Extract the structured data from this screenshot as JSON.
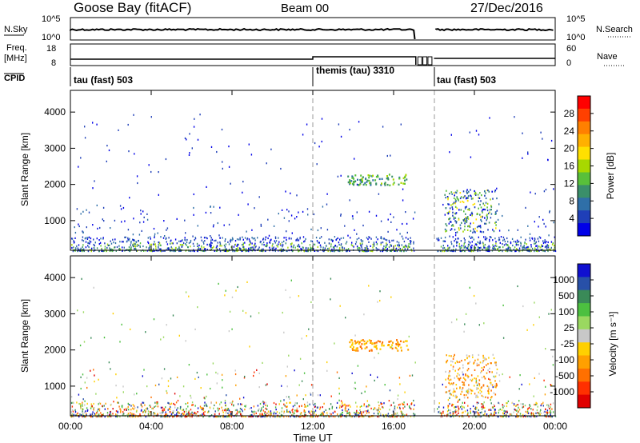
{
  "header": {
    "site": "Goose Bay (fitACF)",
    "beam": "Beam 00",
    "date": "27/Dec/2016"
  },
  "status_panels": {
    "nsky": {
      "left_label": "N.Sky",
      "left_ticks": [
        "10^5",
        "10^0"
      ],
      "right_label": "N.Search",
      "right_ticks": [
        "10^5",
        "10^0"
      ]
    },
    "freq": {
      "left_label_line1": "Freq.",
      "left_label_line2": "[MHz]",
      "left_ticks": [
        "18",
        "8"
      ],
      "right_label": "Nave",
      "right_ticks": [
        "60",
        "0"
      ]
    },
    "cpid": {
      "label": "CPID",
      "segments": [
        {
          "name": "tau (fast) 503",
          "start_h": 0,
          "end_h": 12
        },
        {
          "name": "themis (tau) 3310",
          "start_h": 12,
          "end_h": 18
        },
        {
          "name": "tau (fast) 503",
          "start_h": 18,
          "end_h": 24
        }
      ]
    }
  },
  "chart_data": [
    {
      "type": "heatmap",
      "name": "power",
      "ylabel": "Slant Range [km]",
      "xlabel": "Time UT",
      "x_range_h": [
        0,
        24
      ],
      "ylim": [
        180,
        4600
      ],
      "yticks": [
        "1000",
        "2000",
        "3000",
        "4000"
      ],
      "xticks": [
        "00:00",
        "04:00",
        "08:00",
        "12:00",
        "16:00",
        "20:00",
        "00:00"
      ],
      "colorbar": {
        "label": "Power [dB]",
        "ticks": [
          "4",
          "8",
          "12",
          "16",
          "20",
          "24",
          "28"
        ],
        "colors": [
          "#0000e8",
          "#1f3fb8",
          "#2f6fa8",
          "#3a8f6a",
          "#58c03a",
          "#a8d800",
          "#ffe000",
          "#ffb000",
          "#ff8000",
          "#ff4000",
          "#ff0000"
        ]
      },
      "features": [
        {
          "description": "ground scatter band",
          "range_km": [
            180,
            500
          ],
          "time_h": [
            0,
            24
          ]
        },
        {
          "description": "echo patch",
          "range_km": [
            2000,
            2300
          ],
          "time_h": [
            13.7,
            16.7
          ]
        },
        {
          "description": "echo patch",
          "range_km": [
            700,
            1900
          ],
          "time_h": [
            18.5,
            21
          ]
        }
      ]
    },
    {
      "type": "heatmap",
      "name": "velocity",
      "ylabel": "Slant Range [km]",
      "xlabel": "Time UT",
      "x_range_h": [
        0,
        24
      ],
      "ylim": [
        180,
        4600
      ],
      "yticks": [
        "1000",
        "2000",
        "3000",
        "4000"
      ],
      "xticks": [
        "00:00",
        "04:00",
        "08:00",
        "12:00",
        "16:00",
        "20:00",
        "00:00"
      ],
      "colorbar": {
        "label": "Velocity [m s⁻¹]",
        "ticks": [
          "1000",
          "500",
          "100",
          "25",
          "-25",
          "-100",
          "-500",
          "-1000"
        ],
        "colors": [
          "#1010d0",
          "#2850a8",
          "#3a8a58",
          "#4cc040",
          "#9ad860",
          "#c8c8c8",
          "#ffd000",
          "#ffa000",
          "#ff7000",
          "#ff3000",
          "#e00000"
        ]
      }
    }
  ],
  "x_axis_title": "Time UT"
}
